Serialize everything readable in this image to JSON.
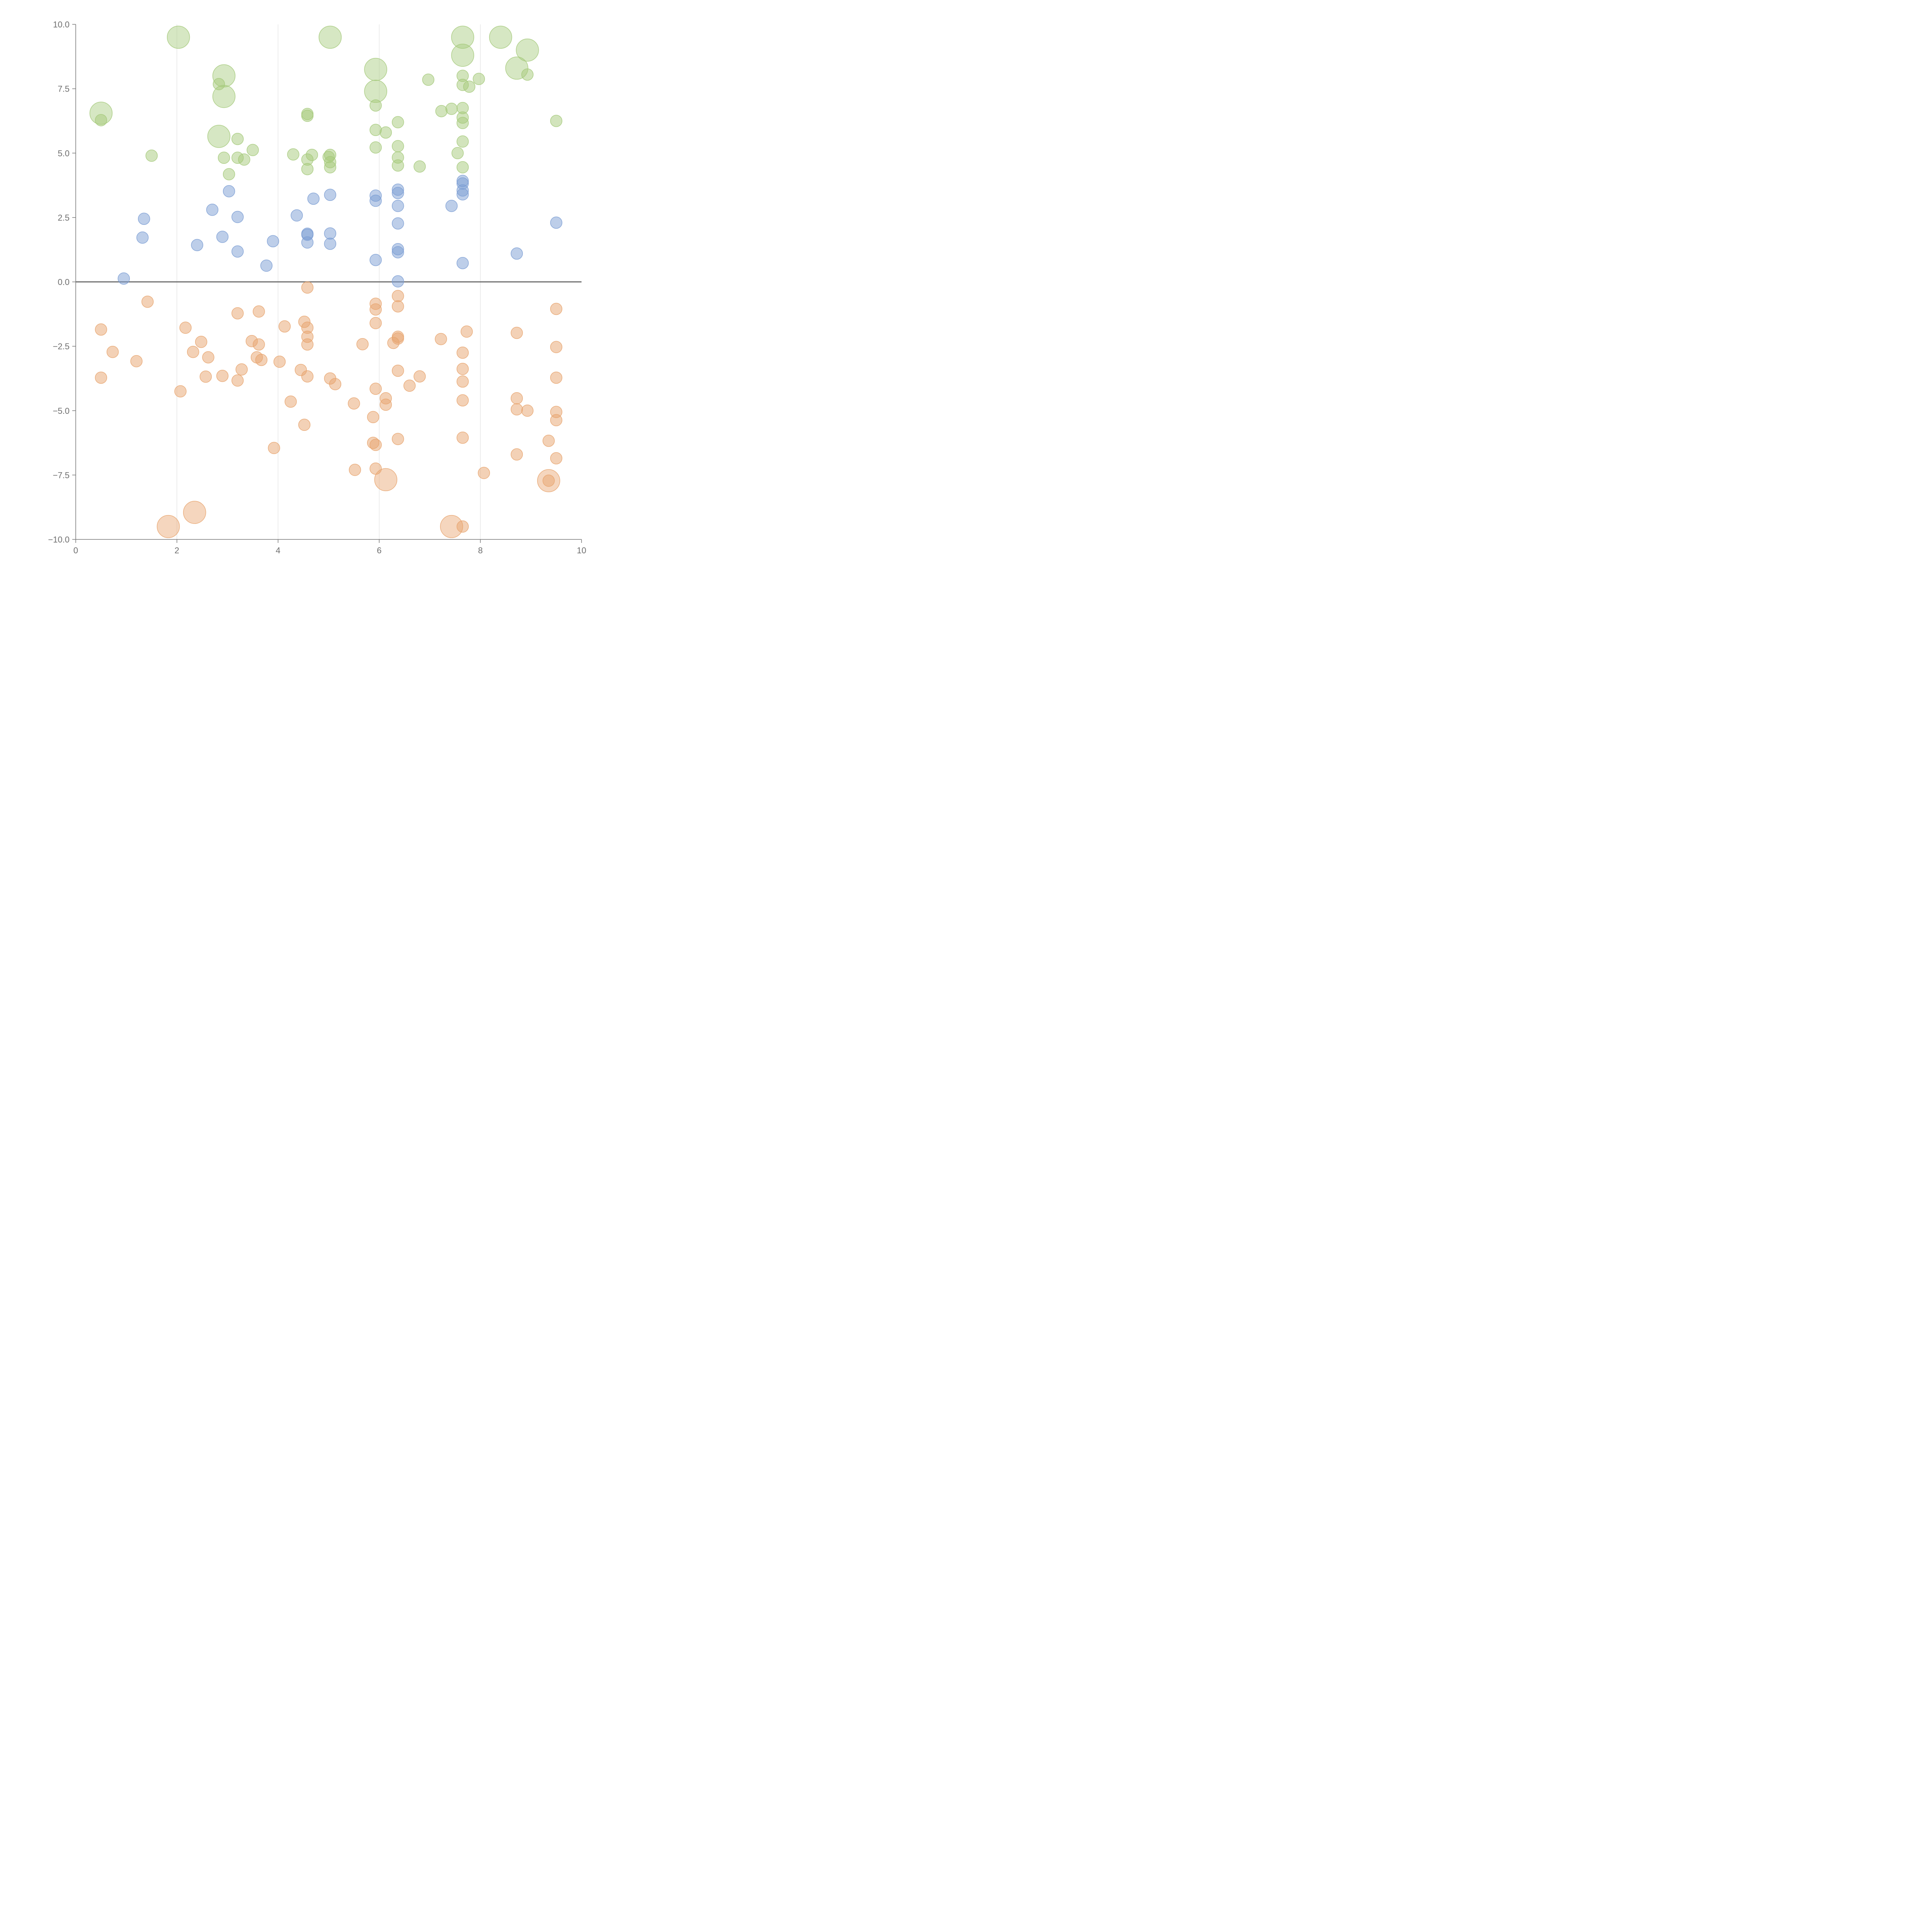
{
  "chart_data": {
    "type": "scatter",
    "title": "",
    "xlabel": "",
    "ylabel": "",
    "xlim": [
      0,
      10
    ],
    "ylim": [
      -10,
      10
    ],
    "x_ticks": [
      "0",
      "2",
      "4",
      "6",
      "8",
      "10"
    ],
    "y_ticks": [
      "10.0",
      "7.5",
      "5.0",
      "2.5",
      "0.0",
      "−2.5",
      "−5.0",
      "−7.5",
      "−10.0"
    ],
    "grid": "vertical lines at x ticks",
    "reference_line": {
      "y": 0
    },
    "legend": "none",
    "colors": {
      "green": "#a5c97a",
      "blue": "#7b9ed3",
      "orange": "#e8a46e"
    },
    "series": [
      {
        "color": "#a5c97a",
        "points": [
          {
            "x": 2.03,
            "y": 9.5,
            "size": "large"
          },
          {
            "x": 5.03,
            "y": 9.5,
            "size": "large"
          },
          {
            "x": 7.65,
            "y": 9.5,
            "size": "large"
          },
          {
            "x": 8.4,
            "y": 9.5,
            "size": "large"
          },
          {
            "x": 8.93,
            "y": 9.0,
            "size": "large"
          },
          {
            "x": 7.65,
            "y": 8.8,
            "size": "large"
          },
          {
            "x": 8.72,
            "y": 8.3,
            "size": "large"
          },
          {
            "x": 5.93,
            "y": 8.25,
            "size": "large"
          },
          {
            "x": 2.93,
            "y": 8.0,
            "size": "large"
          },
          {
            "x": 2.93,
            "y": 7.2,
            "size": "large"
          },
          {
            "x": 5.93,
            "y": 7.4,
            "size": "large"
          },
          {
            "x": 0.5,
            "y": 6.55,
            "size": "large"
          },
          {
            "x": 2.83,
            "y": 5.65,
            "size": "large"
          },
          {
            "x": 7.65,
            "y": 8.0
          },
          {
            "x": 7.97,
            "y": 7.88
          },
          {
            "x": 6.97,
            "y": 7.85
          },
          {
            "x": 8.93,
            "y": 8.05
          },
          {
            "x": 7.65,
            "y": 7.65
          },
          {
            "x": 7.78,
            "y": 7.58
          },
          {
            "x": 2.83,
            "y": 7.68
          },
          {
            "x": 5.93,
            "y": 6.85
          },
          {
            "x": 7.65,
            "y": 6.75
          },
          {
            "x": 7.43,
            "y": 6.72
          },
          {
            "x": 7.23,
            "y": 6.63
          },
          {
            "x": 4.58,
            "y": 6.52
          },
          {
            "x": 4.58,
            "y": 6.45
          },
          {
            "x": 7.65,
            "y": 6.38
          },
          {
            "x": 0.5,
            "y": 6.28
          },
          {
            "x": 9.5,
            "y": 6.25
          },
          {
            "x": 6.37,
            "y": 6.2
          },
          {
            "x": 7.65,
            "y": 6.17
          },
          {
            "x": 5.93,
            "y": 5.9
          },
          {
            "x": 6.13,
            "y": 5.8
          },
          {
            "x": 3.2,
            "y": 5.55
          },
          {
            "x": 7.65,
            "y": 5.45
          },
          {
            "x": 6.37,
            "y": 5.27
          },
          {
            "x": 5.93,
            "y": 5.22
          },
          {
            "x": 3.5,
            "y": 5.12
          },
          {
            "x": 7.55,
            "y": 5.0
          },
          {
            "x": 4.3,
            "y": 4.95
          },
          {
            "x": 4.67,
            "y": 4.93
          },
          {
            "x": 5.03,
            "y": 4.93
          },
          {
            "x": 1.5,
            "y": 4.9
          },
          {
            "x": 5.0,
            "y": 4.85
          },
          {
            "x": 2.93,
            "y": 4.82
          },
          {
            "x": 3.2,
            "y": 4.82
          },
          {
            "x": 6.37,
            "y": 4.83
          },
          {
            "x": 4.58,
            "y": 4.75
          },
          {
            "x": 3.33,
            "y": 4.75
          },
          {
            "x": 5.03,
            "y": 4.65
          },
          {
            "x": 6.37,
            "y": 4.52
          },
          {
            "x": 6.8,
            "y": 4.48
          },
          {
            "x": 7.65,
            "y": 4.45
          },
          {
            "x": 5.03,
            "y": 4.45
          },
          {
            "x": 4.58,
            "y": 4.38
          },
          {
            "x": 3.03,
            "y": 4.18
          }
        ]
      },
      {
        "color": "#7b9ed3",
        "points": [
          {
            "x": 7.65,
            "y": 3.92
          },
          {
            "x": 7.65,
            "y": 3.82
          },
          {
            "x": 6.37,
            "y": 3.58
          },
          {
            "x": 7.65,
            "y": 3.55
          },
          {
            "x": 3.03,
            "y": 3.52
          },
          {
            "x": 6.37,
            "y": 3.45
          },
          {
            "x": 7.65,
            "y": 3.4
          },
          {
            "x": 5.03,
            "y": 3.38
          },
          {
            "x": 5.93,
            "y": 3.35
          },
          {
            "x": 4.7,
            "y": 3.23
          },
          {
            "x": 5.93,
            "y": 3.15
          },
          {
            "x": 6.37,
            "y": 2.95
          },
          {
            "x": 7.43,
            "y": 2.95
          },
          {
            "x": 2.7,
            "y": 2.8
          },
          {
            "x": 4.37,
            "y": 2.58
          },
          {
            "x": 3.2,
            "y": 2.52
          },
          {
            "x": 1.35,
            "y": 2.45
          },
          {
            "x": 9.5,
            "y": 2.3
          },
          {
            "x": 6.37,
            "y": 2.27
          },
          {
            "x": 5.03,
            "y": 1.88
          },
          {
            "x": 4.58,
            "y": 1.87
          },
          {
            "x": 4.58,
            "y": 1.83
          },
          {
            "x": 2.9,
            "y": 1.75
          },
          {
            "x": 1.32,
            "y": 1.72
          },
          {
            "x": 3.9,
            "y": 1.58
          },
          {
            "x": 4.58,
            "y": 1.53
          },
          {
            "x": 5.03,
            "y": 1.48
          },
          {
            "x": 2.4,
            "y": 1.43
          },
          {
            "x": 6.37,
            "y": 1.27
          },
          {
            "x": 3.2,
            "y": 1.18
          },
          {
            "x": 6.37,
            "y": 1.15
          },
          {
            "x": 8.72,
            "y": 1.1
          },
          {
            "x": 5.93,
            "y": 0.85
          },
          {
            "x": 7.65,
            "y": 0.73
          },
          {
            "x": 3.77,
            "y": 0.63
          },
          {
            "x": 6.37,
            "y": 0.02
          },
          {
            "x": 0.95,
            "y": 0.13
          }
        ]
      },
      {
        "color": "#e8a46e",
        "points": [
          {
            "x": 6.13,
            "y": -7.68,
            "size": "large"
          },
          {
            "x": 9.35,
            "y": -7.72,
            "size": "large"
          },
          {
            "x": 2.35,
            "y": -8.95,
            "size": "large"
          },
          {
            "x": 1.83,
            "y": -9.5,
            "size": "large"
          },
          {
            "x": 7.43,
            "y": -9.5,
            "size": "large"
          },
          {
            "x": 4.58,
            "y": -0.22
          },
          {
            "x": 6.37,
            "y": -0.55
          },
          {
            "x": 1.42,
            "y": -0.77
          },
          {
            "x": 5.93,
            "y": -0.85
          },
          {
            "x": 6.37,
            "y": -0.95
          },
          {
            "x": 9.5,
            "y": -1.05
          },
          {
            "x": 5.93,
            "y": -1.07
          },
          {
            "x": 3.62,
            "y": -1.15
          },
          {
            "x": 3.2,
            "y": -1.22
          },
          {
            "x": 4.52,
            "y": -1.55
          },
          {
            "x": 5.93,
            "y": -1.6
          },
          {
            "x": 4.13,
            "y": -1.73
          },
          {
            "x": 2.17,
            "y": -1.78
          },
          {
            "x": 4.58,
            "y": -1.78
          },
          {
            "x": 0.5,
            "y": -1.85
          },
          {
            "x": 7.73,
            "y": -1.93
          },
          {
            "x": 8.72,
            "y": -1.98
          },
          {
            "x": 6.37,
            "y": -2.13
          },
          {
            "x": 4.58,
            "y": -2.13
          },
          {
            "x": 6.37,
            "y": -2.2
          },
          {
            "x": 7.22,
            "y": -2.22
          },
          {
            "x": 3.48,
            "y": -2.3
          },
          {
            "x": 2.48,
            "y": -2.33
          },
          {
            "x": 6.28,
            "y": -2.37
          },
          {
            "x": 5.67,
            "y": -2.42
          },
          {
            "x": 3.62,
            "y": -2.43
          },
          {
            "x": 4.58,
            "y": -2.43
          },
          {
            "x": 9.5,
            "y": -2.53
          },
          {
            "x": 0.73,
            "y": -2.72
          },
          {
            "x": 2.32,
            "y": -2.72
          },
          {
            "x": 7.65,
            "y": -2.75
          },
          {
            "x": 2.62,
            "y": -2.93
          },
          {
            "x": 3.58,
            "y": -2.93
          },
          {
            "x": 3.67,
            "y": -3.03
          },
          {
            "x": 1.2,
            "y": -3.08
          },
          {
            "x": 4.03,
            "y": -3.1
          },
          {
            "x": 3.28,
            "y": -3.4
          },
          {
            "x": 7.65,
            "y": -3.38
          },
          {
            "x": 4.45,
            "y": -3.42
          },
          {
            "x": 6.37,
            "y": -3.45
          },
          {
            "x": 2.9,
            "y": -3.65
          },
          {
            "x": 2.57,
            "y": -3.68
          },
          {
            "x": 6.8,
            "y": -3.67
          },
          {
            "x": 4.58,
            "y": -3.67
          },
          {
            "x": 0.5,
            "y": -3.72
          },
          {
            "x": 9.5,
            "y": -3.72
          },
          {
            "x": 5.03,
            "y": -3.75
          },
          {
            "x": 3.2,
            "y": -3.83
          },
          {
            "x": 7.65,
            "y": -3.87
          },
          {
            "x": 5.13,
            "y": -3.97
          },
          {
            "x": 6.6,
            "y": -4.03
          },
          {
            "x": 5.93,
            "y": -4.15
          },
          {
            "x": 2.07,
            "y": -4.25
          },
          {
            "x": 8.72,
            "y": -4.52
          },
          {
            "x": 6.13,
            "y": -4.52
          },
          {
            "x": 7.65,
            "y": -4.6
          },
          {
            "x": 4.25,
            "y": -4.65
          },
          {
            "x": 5.5,
            "y": -4.72
          },
          {
            "x": 6.13,
            "y": -4.77
          },
          {
            "x": 8.72,
            "y": -4.95
          },
          {
            "x": 8.93,
            "y": -5.0
          },
          {
            "x": 9.5,
            "y": -5.05
          },
          {
            "x": 5.88,
            "y": -5.25
          },
          {
            "x": 9.5,
            "y": -5.37
          },
          {
            "x": 4.52,
            "y": -5.55
          },
          {
            "x": 7.65,
            "y": -6.05
          },
          {
            "x": 6.37,
            "y": -6.1
          },
          {
            "x": 9.35,
            "y": -6.17
          },
          {
            "x": 5.88,
            "y": -6.25
          },
          {
            "x": 5.93,
            "y": -6.33
          },
          {
            "x": 3.92,
            "y": -6.45
          },
          {
            "x": 8.72,
            "y": -6.7
          },
          {
            "x": 9.5,
            "y": -6.85
          },
          {
            "x": 5.52,
            "y": -7.3
          },
          {
            "x": 5.93,
            "y": -7.25
          },
          {
            "x": 8.07,
            "y": -7.42
          },
          {
            "x": 9.35,
            "y": -7.72
          },
          {
            "x": 7.65,
            "y": -9.5
          }
        ]
      }
    ]
  }
}
